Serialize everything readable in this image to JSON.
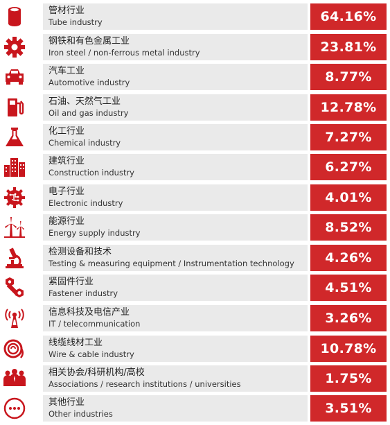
{
  "accent_color": "#d0282a",
  "items": [
    {
      "icon": "tube-icon",
      "zh": "管材行业",
      "en": "Tube industry",
      "pct": "64.16%"
    },
    {
      "icon": "gear-icon",
      "zh": "钢铁和有色金属工业",
      "en": "Iron steel / non-ferrous metal industry",
      "pct": "23.81%"
    },
    {
      "icon": "car-icon",
      "zh": "汽车工业",
      "en": "Automotive industry",
      "pct": "8.77%"
    },
    {
      "icon": "fuel-pump-icon",
      "zh": "石油、天然气工业",
      "en": "Oil and gas industry",
      "pct": "12.78%"
    },
    {
      "icon": "flask-icon",
      "zh": "化工行业",
      "en": "Chemical industry",
      "pct": "7.27%"
    },
    {
      "icon": "buildings-icon",
      "zh": "建筑行业",
      "en": "Construction industry",
      "pct": "6.27%"
    },
    {
      "icon": "circuit-gear-icon",
      "zh": "电子行业",
      "en": "Electronic industry",
      "pct": "4.01%"
    },
    {
      "icon": "wind-turbine-icon",
      "zh": "能源行业",
      "en": "Energy supply industry",
      "pct": "8.52%"
    },
    {
      "icon": "microscope-icon",
      "zh": "检测设备和技术",
      "en": "Testing & measuring equipment / Instrumentation technology",
      "pct": "4.26%"
    },
    {
      "icon": "bolt-nut-icon",
      "zh": "紧固件行业",
      "en": "Fastener industry",
      "pct": "4.51%"
    },
    {
      "icon": "antenna-icon",
      "zh": "信息科技及电信产业",
      "en": "IT / telecommunication",
      "pct": "3.26%"
    },
    {
      "icon": "cable-coil-icon",
      "zh": "线缆线材工业",
      "en": "Wire & cable industry",
      "pct": "10.78%"
    },
    {
      "icon": "people-group-icon",
      "zh": "相关协会/科研机构/高校",
      "en": "Associations / research institutions / universities",
      "pct": "1.75%"
    },
    {
      "icon": "more-dots-icon",
      "zh": "其他行业",
      "en": "Other industries",
      "pct": "3.51%"
    }
  ]
}
